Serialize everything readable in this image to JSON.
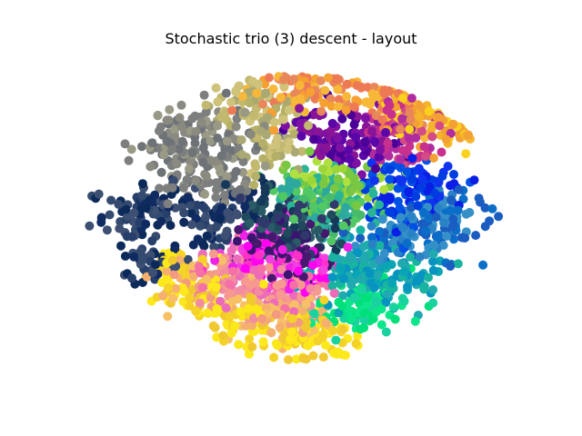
{
  "chart_data": {
    "type": "scatter",
    "title": "Stochastic trio (3) descent - layout",
    "xlabel": "",
    "ylabel": "",
    "axes_visible": false,
    "grid": false,
    "legend": "none",
    "xlim": [
      0,
      1
    ],
    "ylim": [
      0,
      1
    ],
    "point_count": 2500,
    "point_radius_px": 5,
    "clusters": [
      {
        "name": "gray",
        "color": "#7f7f73",
        "colors": [
          "#8a8a80",
          "#6e7378",
          "#999986",
          "#7d7f7f"
        ],
        "points": [
          {
            "x": 0.27,
            "y": 0.8
          },
          {
            "x": 0.35,
            "y": 0.73
          },
          {
            "x": 0.26,
            "y": 0.64
          },
          {
            "x": 0.34,
            "y": 0.62
          },
          {
            "x": 0.22,
            "y": 0.72
          }
        ]
      },
      {
        "name": "khaki",
        "color": "#b8b070",
        "colors": [
          "#c2b870",
          "#aaa873",
          "#cfc27a",
          "#b5b067"
        ],
        "points": [
          {
            "x": 0.43,
            "y": 0.82
          },
          {
            "x": 0.44,
            "y": 0.7
          },
          {
            "x": 0.38,
            "y": 0.85
          }
        ]
      },
      {
        "name": "navy",
        "color": "#1d3a6e",
        "colors": [
          "#0b2a5a",
          "#27406b",
          "#344a6f",
          "#102a62",
          "#3d4f72"
        ],
        "points": [
          {
            "x": 0.12,
            "y": 0.5
          },
          {
            "x": 0.2,
            "y": 0.55
          },
          {
            "x": 0.3,
            "y": 0.47
          },
          {
            "x": 0.17,
            "y": 0.38
          },
          {
            "x": 0.37,
            "y": 0.52
          }
        ]
      },
      {
        "name": "orange",
        "color": "#f08a40",
        "colors": [
          "#f5a030",
          "#ee7a55",
          "#e8885a",
          "#f7b83a"
        ],
        "points": [
          {
            "x": 0.53,
            "y": 0.9
          },
          {
            "x": 0.63,
            "y": 0.88
          },
          {
            "x": 0.73,
            "y": 0.82
          },
          {
            "x": 0.45,
            "y": 0.86
          }
        ]
      },
      {
        "name": "purple",
        "color": "#6a0ea0",
        "colors": [
          "#5a06a8",
          "#7d11a3",
          "#4b0098",
          "#8a1496"
        ],
        "points": [
          {
            "x": 0.55,
            "y": 0.76
          },
          {
            "x": 0.66,
            "y": 0.74
          },
          {
            "x": 0.62,
            "y": 0.7
          }
        ]
      },
      {
        "name": "magenta-pink",
        "color": "#c03aa0",
        "colors": [
          "#c8308e",
          "#d44a86",
          "#b02ca0"
        ],
        "points": [
          {
            "x": 0.73,
            "y": 0.72
          },
          {
            "x": 0.72,
            "y": 0.8
          }
        ]
      },
      {
        "name": "yellow-orange",
        "color": "#f8c020",
        "colors": [
          "#fad21e",
          "#f5b42a",
          "#f3a035"
        ],
        "points": [
          {
            "x": 0.83,
            "y": 0.78
          },
          {
            "x": 0.76,
            "y": 0.85
          }
        ]
      },
      {
        "name": "blue",
        "color": "#0a2ae8",
        "colors": [
          "#0a1ee6",
          "#1033f0",
          "#003de0",
          "#0050e6"
        ],
        "points": [
          {
            "x": 0.73,
            "y": 0.62
          },
          {
            "x": 0.8,
            "y": 0.6
          },
          {
            "x": 0.71,
            "y": 0.53
          }
        ]
      },
      {
        "name": "steel-blue",
        "color": "#1e78c8",
        "colors": [
          "#0a6ec8",
          "#2a82c6",
          "#1a5cc0",
          "#3690c8"
        ],
        "points": [
          {
            "x": 0.84,
            "y": 0.52
          },
          {
            "x": 0.78,
            "y": 0.48
          },
          {
            "x": 0.8,
            "y": 0.45
          },
          {
            "x": 0.71,
            "y": 0.43
          }
        ]
      },
      {
        "name": "green-teal",
        "color": "#30b080",
        "colors": [
          "#28b496",
          "#46bc6a",
          "#2ca8a0",
          "#52c864"
        ],
        "points": [
          {
            "x": 0.53,
            "y": 0.58
          },
          {
            "x": 0.61,
            "y": 0.54
          },
          {
            "x": 0.57,
            "y": 0.52
          }
        ]
      },
      {
        "name": "lime",
        "color": "#8ad23c",
        "colors": [
          "#9cd636",
          "#7ac842",
          "#b0e040"
        ],
        "points": [
          {
            "x": 0.63,
            "y": 0.58
          },
          {
            "x": 0.54,
            "y": 0.62
          }
        ]
      },
      {
        "name": "dark-teal",
        "color": "#234a5a",
        "colors": [
          "#1f4a5c",
          "#2a5a66",
          "#16395a",
          "#30386c"
        ],
        "points": [
          {
            "x": 0.46,
            "y": 0.48
          },
          {
            "x": 0.55,
            "y": 0.47
          },
          {
            "x": 0.44,
            "y": 0.52
          }
        ]
      },
      {
        "name": "indigo",
        "color": "#3c1a6a",
        "colors": [
          "#3a1470",
          "#2e2460",
          "#46186e"
        ],
        "points": [
          {
            "x": 0.5,
            "y": 0.41
          },
          {
            "x": 0.45,
            "y": 0.44
          }
        ]
      },
      {
        "name": "teal",
        "color": "#10a0b0",
        "colors": [
          "#0aa5b5",
          "#18b4a0",
          "#0894c0",
          "#20aab0"
        ],
        "points": [
          {
            "x": 0.62,
            "y": 0.33
          },
          {
            "x": 0.68,
            "y": 0.31
          },
          {
            "x": 0.74,
            "y": 0.34
          },
          {
            "x": 0.63,
            "y": 0.39
          }
        ]
      },
      {
        "name": "spring-green",
        "color": "#10d890",
        "colors": [
          "#0ce68a",
          "#1ad2a0",
          "#00e07a"
        ],
        "points": [
          {
            "x": 0.67,
            "y": 0.24
          },
          {
            "x": 0.61,
            "y": 0.21
          }
        ]
      },
      {
        "name": "magenta",
        "color": "#ff10e0",
        "colors": [
          "#ff00f0",
          "#f020e6",
          "#ff30c8",
          "#f240e0"
        ],
        "points": [
          {
            "x": 0.4,
            "y": 0.4
          },
          {
            "x": 0.45,
            "y": 0.38
          },
          {
            "x": 0.51,
            "y": 0.35
          }
        ]
      },
      {
        "name": "pink",
        "color": "#f47ab0",
        "colors": [
          "#f470a6",
          "#f28ca0",
          "#ec6cba",
          "#f69a90"
        ],
        "points": [
          {
            "x": 0.34,
            "y": 0.35
          },
          {
            "x": 0.42,
            "y": 0.31
          },
          {
            "x": 0.49,
            "y": 0.27
          },
          {
            "x": 0.36,
            "y": 0.28
          }
        ]
      },
      {
        "name": "salmon-peach",
        "color": "#f4a878",
        "colors": [
          "#f5b070",
          "#f39a80",
          "#f7c066"
        ],
        "points": [
          {
            "x": 0.28,
            "y": 0.32
          },
          {
            "x": 0.4,
            "y": 0.22
          },
          {
            "x": 0.5,
            "y": 0.2
          }
        ]
      },
      {
        "name": "yellow",
        "color": "#f8e020",
        "colors": [
          "#fbe81a",
          "#f5d228",
          "#ffe81e",
          "#f0c830"
        ],
        "points": [
          {
            "x": 0.22,
            "y": 0.34
          },
          {
            "x": 0.27,
            "y": 0.26
          },
          {
            "x": 0.37,
            "y": 0.18
          },
          {
            "x": 0.48,
            "y": 0.12
          },
          {
            "x": 0.57,
            "y": 0.14
          }
        ]
      }
    ]
  }
}
